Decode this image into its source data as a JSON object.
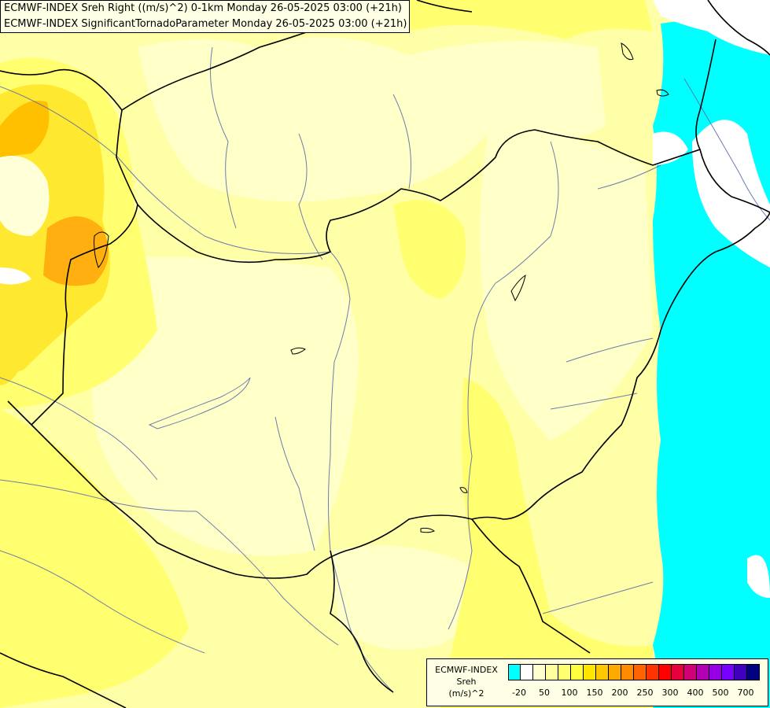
{
  "header": {
    "line1": "ECMWF-INDEX Sreh Right ((m/s)^2) 0-1km Monday 26-05-2025 03:00 (+21h)",
    "line2": "ECMWF-INDEX SignificantTornadoParameter Monday 26-05-2025 03:00 (+21h)"
  },
  "legend": {
    "line1": "ECMWF-INDEX",
    "line2": "Sreh",
    "line3": "(m/s)^2",
    "colors": [
      "#00ffff",
      "#ffffff",
      "#ffffd0",
      "#ffffa0",
      "#ffff70",
      "#ffff40",
      "#ffe600",
      "#ffc800",
      "#ffaa00",
      "#ff8c00",
      "#ff6400",
      "#ff3200",
      "#ff0000",
      "#e6003c",
      "#d20078",
      "#b400b4",
      "#9600e6",
      "#7800ff",
      "#4000c0",
      "#000080"
    ],
    "ticks": [
      "-20",
      "50",
      "100",
      "150",
      "200",
      "250",
      "300",
      "400",
      "500",
      "700"
    ]
  },
  "map_colors": {
    "base": "#ffffc0",
    "light": "#ffffd2",
    "yellow": "#ffff78",
    "mid_yellow": "#ffffa0",
    "gold": "#ffee30",
    "orange": "#ffcc00",
    "dark_orange": "#ffaa10",
    "cyan": "#00ffff",
    "white": "#ffffff"
  }
}
